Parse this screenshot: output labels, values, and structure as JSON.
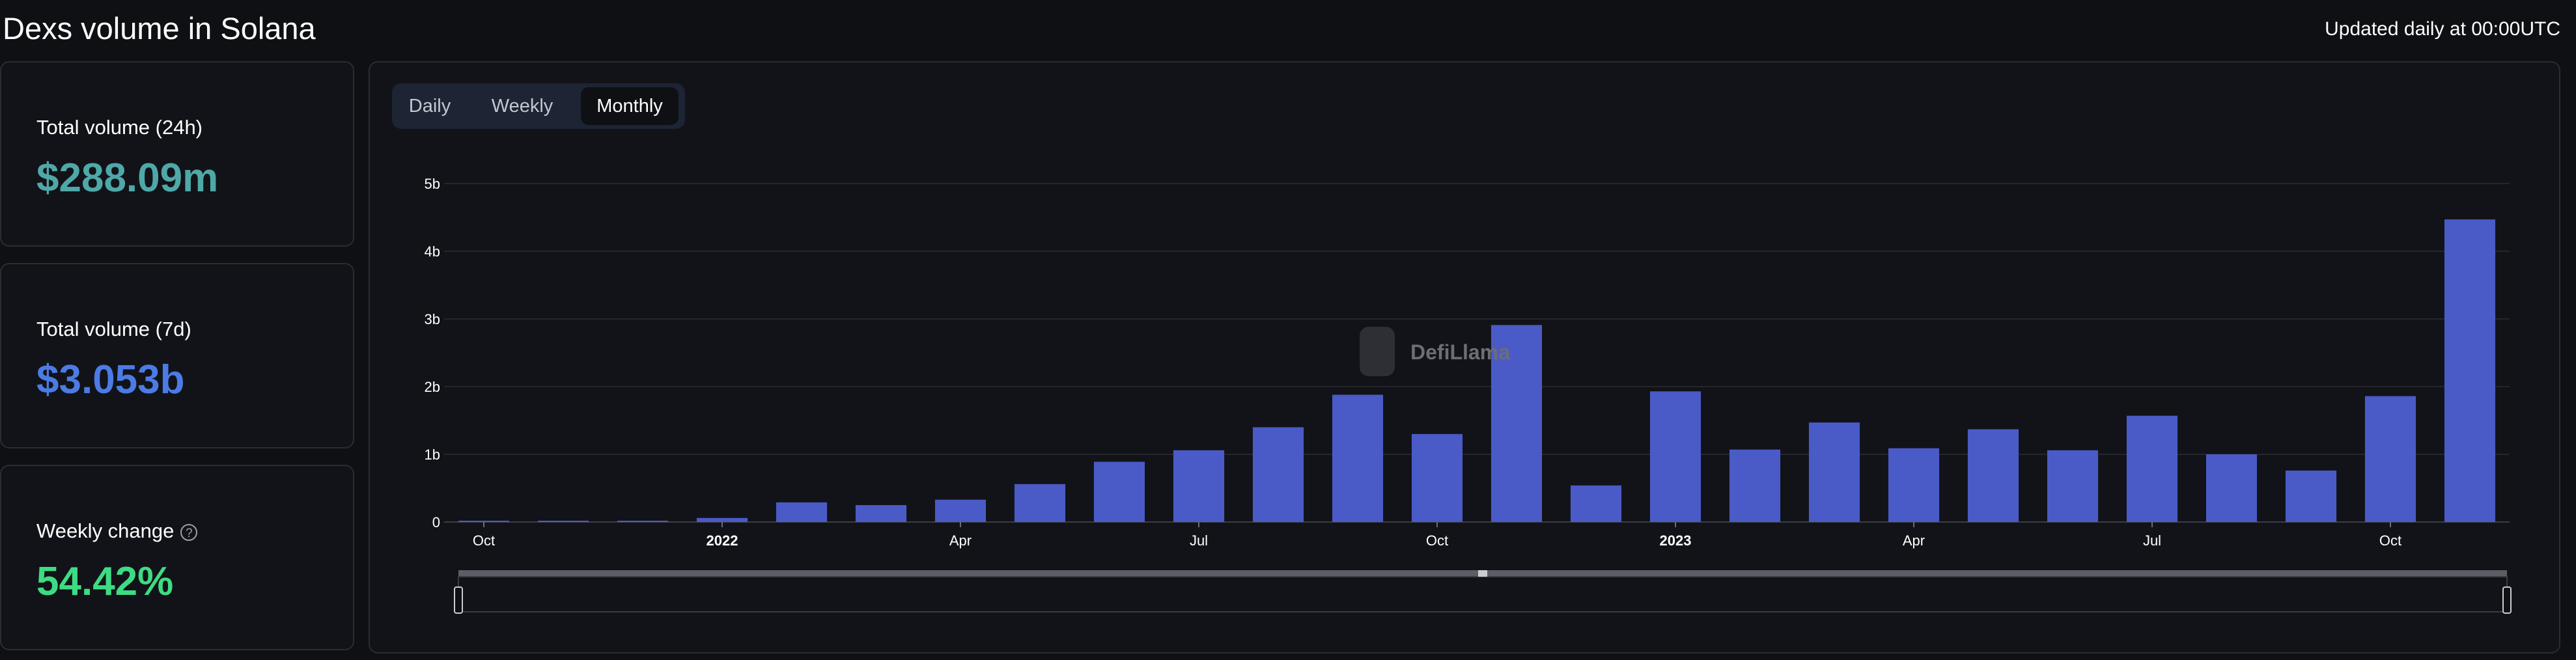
{
  "header": {
    "title": "Dexs volume in Solana",
    "updated": "Updated daily at 00:00UTC"
  },
  "stats": [
    {
      "label": "Total volume (24h)",
      "value": "$288.09m",
      "color": "#4fa8a8"
    },
    {
      "label": "Total volume (7d)",
      "value": "$3.053b",
      "color": "#4b7be5"
    },
    {
      "label": "Weekly change",
      "value": "54.42%",
      "color": "#3ddc84"
    }
  ],
  "tabs": [
    {
      "label": "Daily",
      "active": false
    },
    {
      "label": "Weekly",
      "active": false
    },
    {
      "label": "Monthly",
      "active": true
    }
  ],
  "watermark": "DefiLlama",
  "chart_data": {
    "type": "bar",
    "bar_color": "#4a5bc7",
    "grid": true,
    "ylim": [
      0,
      5000000000
    ],
    "y_ticks": [
      "0",
      "1b",
      "2b",
      "3b",
      "4b",
      "5b"
    ],
    "x_ticks": [
      {
        "label": "Oct",
        "at": "2021-10",
        "bold": false
      },
      {
        "label": "2022",
        "at": "2022-01",
        "bold": true
      },
      {
        "label": "Apr",
        "at": "2022-04",
        "bold": false
      },
      {
        "label": "Jul",
        "at": "2022-07",
        "bold": false
      },
      {
        "label": "Oct",
        "at": "2022-10",
        "bold": false
      },
      {
        "label": "2023",
        "at": "2023-01",
        "bold": true
      },
      {
        "label": "Apr",
        "at": "2023-04",
        "bold": false
      },
      {
        "label": "Jul",
        "at": "2023-07",
        "bold": false
      },
      {
        "label": "Oct",
        "at": "2023-10",
        "bold": false
      }
    ],
    "categories": [
      "2021-10",
      "2021-11",
      "2021-12",
      "2022-01",
      "2022-02",
      "2022-03",
      "2022-04",
      "2022-05",
      "2022-06",
      "2022-07",
      "2022-08",
      "2022-09",
      "2022-10",
      "2022-11",
      "2022-12",
      "2023-01",
      "2023-02",
      "2023-03",
      "2023-04",
      "2023-05",
      "2023-06",
      "2023-07",
      "2023-08",
      "2023-09",
      "2023-10",
      "2023-11"
    ],
    "values": [
      5000000,
      10000000,
      15000000,
      60000000,
      290000000,
      250000000,
      330000000,
      560000000,
      890000000,
      1060000000,
      1400000000,
      1880000000,
      1300000000,
      2910000000,
      540000000,
      1930000000,
      1070000000,
      1470000000,
      1090000000,
      1370000000,
      1060000000,
      1570000000,
      1000000000,
      760000000,
      1860000000,
      4470000000
    ]
  }
}
